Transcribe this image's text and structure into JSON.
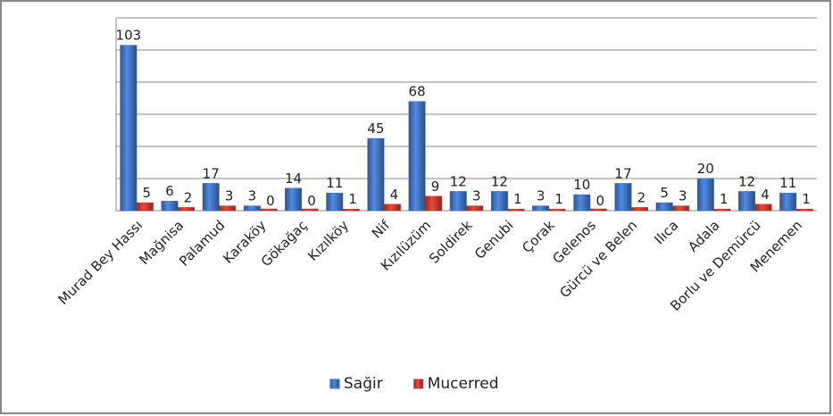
{
  "chart_data": {
    "type": "bar",
    "categories": [
      "Murad Bey Hassı",
      "Mağnisa",
      "Palamud",
      "Karaköy",
      "Gökağaç",
      "Kızılköy",
      "Nif",
      "Kızılüzüm",
      "Soldirek",
      "Genubi",
      "Çorak",
      "Gelenos",
      "Gürcü ve Belen",
      "Ilıca",
      "Adala",
      "Borlu ve Demürcü",
      "Menemen"
    ],
    "series": [
      {
        "name": "Sağir",
        "color": "#3f6fb8",
        "values": [
          103,
          6,
          17,
          3,
          14,
          11,
          45,
          68,
          12,
          12,
          3,
          10,
          17,
          5,
          20,
          12,
          11
        ]
      },
      {
        "name": "Mucerred",
        "color": "#c0392f",
        "values": [
          5,
          2,
          3,
          0,
          0,
          1,
          4,
          9,
          3,
          1,
          1,
          0,
          2,
          3,
          1,
          4,
          1
        ]
      }
    ],
    "ylim": [
      0,
      120
    ],
    "yticks": [
      0,
      20,
      40,
      60,
      80,
      100,
      120
    ],
    "grid": true,
    "legend": "bottom"
  }
}
